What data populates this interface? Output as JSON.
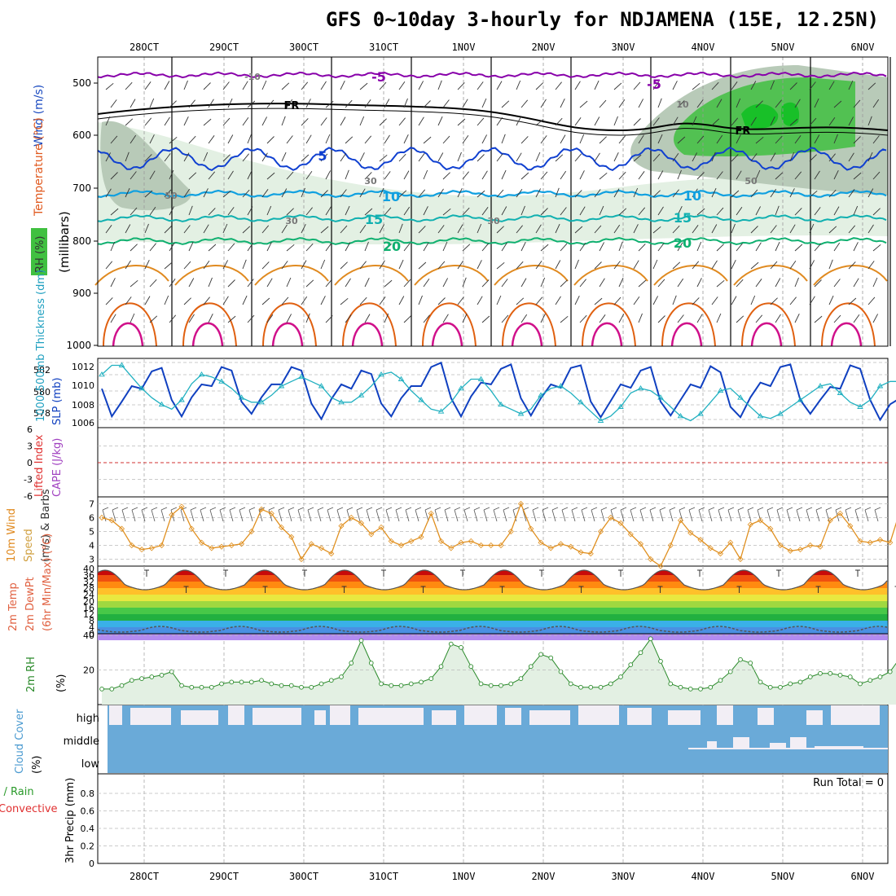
{
  "title": "GFS 0~10day 3-hourly for NDJAMENA (15E, 12.25N)",
  "dates": [
    "28OCT",
    "29OCT",
    "30OCT",
    "31OCT",
    "1NOV",
    "2NOV",
    "3NOV",
    "4NOV",
    "5NOV",
    "6NOV"
  ],
  "panels": {
    "upper": {
      "ylabel": "(millibars)",
      "side_labels": [
        "Wind (m/s)",
        "Temperature (°C)",
        "RH (%)"
      ],
      "levels": [
        500,
        600,
        700,
        800,
        900,
        1000
      ],
      "contour_labels": [
        "-5",
        "FR",
        "5",
        "10",
        "15",
        "20",
        "-10",
        "10",
        "30",
        "50",
        "30",
        "50",
        "-5",
        "10",
        "15",
        "20",
        "FR",
        "30"
      ],
      "colors": {
        "purple": "#8800aa",
        "black": "#000000",
        "blue": "#1040d0",
        "cyan_blue": "#10a0e0",
        "teal": "#10b0b0",
        "green": "#10b070",
        "orange": "#e08a20",
        "dark_orange": "#e06010",
        "magenta": "#d0108a",
        "green_fill": "#40c040",
        "grey_fill": "#b8cab8",
        "light_fill": "#e3f0e3"
      }
    },
    "thickness": {
      "left_label": "1000-500mb Thickness (dm)",
      "right_label": "SLP (mb)",
      "left_ticks": [
        578,
        580,
        582
      ],
      "right_ticks": [
        1006,
        1008,
        1010,
        1012
      ]
    },
    "cape": {
      "left_label": "Lifted Index",
      "right_label": "CAPE (J/kg)",
      "ticks": [
        "6",
        "3",
        "0",
        "-3",
        "-6"
      ]
    },
    "wind": {
      "label_lines": [
        "10m Wind",
        "Speed",
        "(m/s) & Barbs"
      ],
      "ticks": [
        3,
        4,
        5,
        6,
        7
      ]
    },
    "temp": {
      "label_lines": [
        "2m Temp",
        "2m DewPt",
        "(6hr Min/Max) (°C)"
      ],
      "ticks": [
        0,
        8,
        16,
        24,
        32,
        40
      ],
      "ticks_minor": [
        4,
        12,
        20,
        28,
        36
      ]
    },
    "rh": {
      "label_lines": [
        "2m RH",
        "(%)"
      ],
      "ticks": [
        20,
        40
      ]
    },
    "cloud": {
      "label_lines": [
        "Cloud Cover",
        "(%)"
      ],
      "layers": [
        "high",
        "middle",
        "low"
      ]
    },
    "precip": {
      "label_lines": [
        "Total / Rain",
        "Convective",
        "3hr Precip (mm)"
      ],
      "ticks": [
        "0",
        "0.2",
        "0.4",
        "0.6",
        "0.8"
      ],
      "run_total": "Run Total = 0"
    }
  },
  "chart_data": [
    {
      "type": "line",
      "title": "1000-500mb Thickness (dm) and SLP (mb)",
      "x_step_hours": 3,
      "series": [
        {
          "name": "SLP (mb)",
          "color": "#1040c0",
          "ylim": [
            1005,
            1013
          ],
          "values": [
            1009.5,
            1006.3,
            1008.0,
            1009.8,
            1009.5,
            1011.5,
            1011.9,
            1008.2,
            1006.3,
            1008.5,
            1010.0,
            1009.8,
            1012.0,
            1011.6,
            1008.0,
            1006.6,
            1008.5,
            1010.0,
            1010.0,
            1012.0,
            1011.6,
            1007.8,
            1006.0,
            1008.3,
            1010.0,
            1009.5,
            1011.6,
            1011.2,
            1007.8,
            1006.3,
            1008.4,
            1009.8,
            1009.8,
            1012.0,
            1012.5,
            1008.4,
            1006.3,
            1008.6,
            1010.2,
            1010.0,
            1011.8,
            1012.3,
            1008.4,
            1006.4,
            1008.4,
            1010.0,
            1009.6,
            1011.9,
            1012.2,
            1008.0,
            1006.2,
            1008.1,
            1010.0,
            1009.6,
            1011.6,
            1012.0,
            1008.0,
            1006.4,
            1008.2,
            1010.0,
            1009.6,
            1012.1,
            1011.4,
            1007.4,
            1006.2,
            1008.5,
            1010.2,
            1009.8,
            1012.0,
            1012.3,
            1008.2,
            1006.6,
            1008.2,
            1009.7,
            1009.5,
            1012.2,
            1011.8,
            1008.2,
            1005.9,
            1007.7,
            1008.4,
            1008.4,
            1008.4,
            1008.8,
            1009.8
          ]
        },
        {
          "name": "1000-500mb Thickness (dm)",
          "color": "#20b0c0",
          "ylim": [
            577,
            583
          ],
          "values": [
            581.6,
            582.4,
            582.4,
            581.4,
            580.4,
            579.6,
            579.0,
            578.6,
            579.4,
            580.8,
            581.6,
            581.4,
            581.0,
            580.4,
            579.6,
            579.2,
            579.2,
            579.8,
            580.6,
            581.0,
            581.4,
            581.0,
            580.6,
            579.6,
            579.2,
            579.2,
            579.8,
            580.6,
            581.6,
            581.8,
            581.2,
            580.2,
            579.4,
            578.6,
            578.4,
            579.2,
            580.4,
            581.2,
            581.2,
            580.2,
            579.0,
            578.6,
            578.2,
            578.6,
            579.8,
            580.4,
            580.6,
            580.0,
            579.2,
            578.4,
            577.6,
            578.0,
            578.8,
            580.0,
            580.4,
            580.2,
            579.6,
            578.8,
            578.0,
            577.6,
            578.2,
            579.2,
            580.2,
            580.4,
            579.6,
            578.8,
            578.0,
            577.8,
            578.2,
            578.8,
            579.4,
            580.0,
            580.6,
            580.8,
            580.0,
            579.2,
            578.8,
            579.4,
            580.6,
            581.0,
            581.0,
            580.4,
            579.4,
            578.8,
            578.6
          ]
        }
      ]
    },
    {
      "type": "line",
      "title": "10m Wind Speed (m/s)",
      "ylim": [
        2.5,
        7.5
      ],
      "x_step_hours": 3,
      "series": [
        {
          "name": "10m Wind Speed",
          "color": "#e09020",
          "values": [
            6.0,
            5.8,
            5.2,
            4.0,
            3.7,
            3.8,
            4.0,
            6.2,
            6.8,
            5.2,
            4.2,
            3.8,
            3.9,
            4.0,
            4.1,
            5.0,
            6.6,
            6.3,
            5.3,
            4.6,
            3.0,
            4.1,
            3.8,
            3.4,
            5.4,
            6.0,
            5.6,
            4.8,
            5.3,
            4.3,
            4.0,
            4.3,
            4.6,
            6.3,
            4.3,
            3.8,
            4.2,
            4.3,
            4.0,
            4.0,
            4.0,
            5.0,
            7.0,
            5.2,
            4.2,
            3.8,
            4.1,
            3.9,
            3.5,
            3.4,
            5.0,
            6.0,
            5.6,
            4.8,
            4.1,
            3.0,
            2.5,
            4.0,
            5.8,
            4.9,
            4.4,
            3.8,
            3.4,
            4.2,
            3.0,
            5.5,
            5.8,
            5.2,
            4.0,
            3.6,
            3.7,
            4.0,
            3.9,
            5.8,
            6.3,
            5.4,
            4.3,
            4.2,
            4.4,
            4.2,
            6.5,
            7.3,
            6.8,
            5.6,
            4.8,
            4.6,
            4.2,
            4.0
          ]
        }
      ]
    },
    {
      "type": "area",
      "title": "2m RH (%)",
      "ylim": [
        0,
        40
      ],
      "x_step_hours": 3,
      "series": [
        {
          "name": "2m RH",
          "color": "#2a8a2a",
          "values": [
            9,
            9,
            11,
            14,
            15,
            16,
            17,
            19,
            11,
            10,
            10,
            10,
            12,
            13,
            13,
            13,
            14,
            12,
            11,
            11,
            10,
            10,
            12,
            14,
            16,
            24,
            37,
            24,
            12,
            11,
            11,
            12,
            13,
            15,
            22,
            35,
            33,
            22,
            12,
            11,
            11,
            12,
            15,
            22,
            29,
            27,
            19,
            12,
            10,
            10,
            10,
            12,
            16,
            23,
            30,
            38,
            25,
            12,
            10,
            9,
            9,
            10,
            14,
            19,
            26,
            24,
            13,
            10,
            10,
            12,
            13,
            16,
            18,
            18,
            17,
            16,
            12,
            14,
            16,
            19,
            27,
            17,
            15,
            12,
            13,
            18,
            20,
            20,
            19
          ]
        }
      ]
    }
  ]
}
